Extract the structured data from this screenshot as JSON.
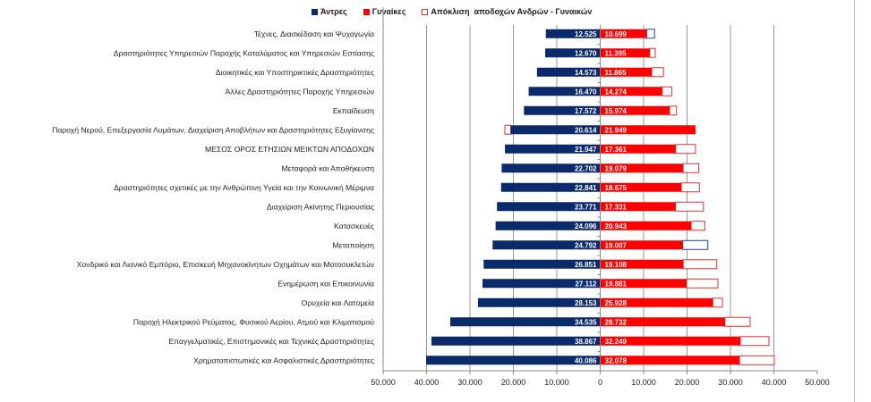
{
  "chart_data": {
    "type": "bar",
    "orientation": "horizontal-diverging",
    "legend": {
      "placement": "top",
      "items": [
        {
          "label": "Άντρες",
          "color": "#0b2a6b",
          "style": "filled"
        },
        {
          "label": "Γυναίκες",
          "color": "#ff0000",
          "style": "filled"
        },
        {
          "label": "Απόκλιση  αποδοχών Ανδρών - Γυναικών",
          "color": "#e03030",
          "style": "outline"
        }
      ]
    },
    "xlim": [
      -50000,
      50000
    ],
    "x_ticks": [
      "50.000",
      "40.000",
      "30.000",
      "20.000",
      "10.000",
      "0",
      "10.000",
      "20.000",
      "30.000",
      "40.000",
      "50.000"
    ],
    "grid": true,
    "rows": [
      {
        "category": "Τέχνες, Διασκέδαση και Ψυχαγωγία",
        "men": 12525,
        "women": 10699,
        "men_label": "12.525",
        "women_label": "10.699",
        "gap_color": "#1f3f8f"
      },
      {
        "category": "Δραστηριότητες Υπηρεσιών Παροχής Καταλύματος και Υπηρεσιών Εστίασης",
        "men": 12670,
        "women": 11395,
        "men_label": "12.670",
        "women_label": "11.395",
        "gap_color": "#e03030"
      },
      {
        "category": "Διοικητικές και Υποστηρικτικές Δραστηριότητες",
        "men": 14573,
        "women": 11865,
        "men_label": "14.573",
        "women_label": "11.865",
        "gap_color": "#e03030"
      },
      {
        "category": "Άλλες Δραστηριότητες Παροχής Υπηρεσιών",
        "men": 16470,
        "women": 14274,
        "men_label": "16.470",
        "women_label": "14.274",
        "gap_color": "#e03030"
      },
      {
        "category": "Εκπαίδευση",
        "men": 17572,
        "women": 15974,
        "men_label": "17.572",
        "women_label": "15.974",
        "gap_color": "#e03030"
      },
      {
        "category": "Παροχή Νερού, Επεξεργασία Λυμάτων, Διαχείριση Αποβλήτων και Δραστηριότητες Εξυγίανσης",
        "men": 20614,
        "women": 21949,
        "men_label": "20.614",
        "women_label": "21.949",
        "gap_color": "#e03030"
      },
      {
        "category": "ΜΕΣΟΣ ΟΡΟΣ ΕΤΗΣΙΩΝ ΜΕΙΚΤΩΝ ΑΠΟΔΟΧΩΝ",
        "men": 21947,
        "women": 17361,
        "men_label": "21.947",
        "women_label": "17.361",
        "gap_color": "#e03030"
      },
      {
        "category": "Μεταφορά και Αποθήκευση",
        "men": 22702,
        "women": 19079,
        "men_label": "22.702",
        "women_label": "19.079",
        "gap_color": "#e03030"
      },
      {
        "category": "Δραστηριότητες σχετικές με την Ανθρώπινη Υγεία και την Κοινωνική Μέριμνα",
        "men": 22841,
        "women": 18675,
        "men_label": "22.841",
        "women_label": "18.675",
        "gap_color": "#e03030"
      },
      {
        "category": "Διαχείριση Ακίνητης Περιουσίας",
        "men": 23771,
        "women": 17331,
        "men_label": "23.771",
        "women_label": "17.331",
        "gap_color": "#e03030"
      },
      {
        "category": "Κατασκευές",
        "men": 24096,
        "women": 20943,
        "men_label": "24.096",
        "women_label": "20.943",
        "gap_color": "#e03030"
      },
      {
        "category": "Μεταποίηση",
        "men": 24792,
        "women": 19007,
        "men_label": "24.792",
        "women_label": "19.007",
        "gap_color": "#1f3f8f"
      },
      {
        "category": "Χονδρικό και Λιανικό Εμπόριο, Επισκευή Μηχανοκίνητων Οχημάτων και Μοτοσυκλετών",
        "men": 26851,
        "women": 19108,
        "men_label": "26.851",
        "women_label": "19.108",
        "gap_color": "#e03030"
      },
      {
        "category": "Ενημέρωση και Επικοινωνία",
        "men": 27112,
        "women": 19881,
        "men_label": "27.112",
        "women_label": "19.881",
        "gap_color": "#e03030"
      },
      {
        "category": "Ορυχεία και Λατομεία",
        "men": 28153,
        "women": 25928,
        "men_label": "28.153",
        "women_label": "25.928",
        "gap_color": "#e03030"
      },
      {
        "category": "Παροχή Ηλεκτρικού Ρεύματος, Φυσικού Αερίου, Ατμού και Κλιματισμού",
        "men": 34535,
        "women": 28732,
        "men_label": "34.535",
        "women_label": "28.732",
        "gap_color": "#e03030"
      },
      {
        "category": "Επαγγελματικές, Επιστημονικές και Τεχνικές Δραστηριότητες",
        "men": 38867,
        "women": 32249,
        "men_label": "38.867",
        "women_label": "32.249",
        "gap_color": "#e03030"
      },
      {
        "category": "Χρηματοπιστωτικές και Ασφαλιστικές Δραστηριότητες",
        "men": 40086,
        "women": 32078,
        "men_label": "40.086",
        "women_label": "32.078",
        "gap_color": "#e03030"
      }
    ]
  }
}
